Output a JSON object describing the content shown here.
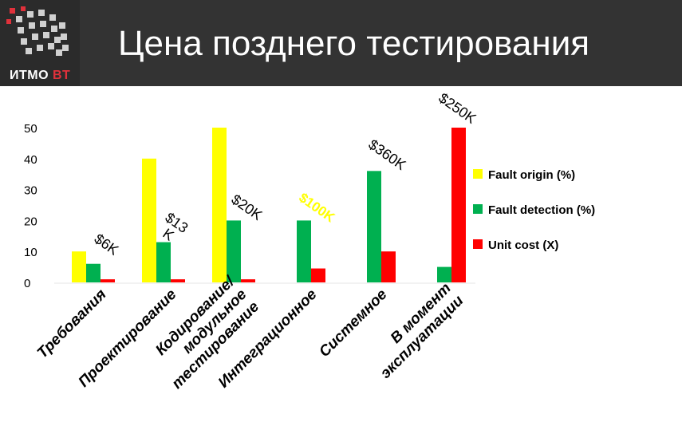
{
  "header": {
    "logo_text": "ИТМО",
    "logo_accent": "BT",
    "title": "Цена позднего тестирования"
  },
  "chart_data": {
    "type": "bar",
    "categories": [
      "Требования",
      "Проектирование",
      "Кодирование/ модульное тестирование",
      "Интеграционное",
      "Системное",
      "В момент эксплуатации"
    ],
    "category_lines": [
      [
        "Требования"
      ],
      [
        "Проектирование"
      ],
      [
        "Кодирование/",
        "модульное",
        "тестирование"
      ],
      [
        "Интеграционное"
      ],
      [
        "Системное"
      ],
      [
        "В момент",
        "эксплуатации"
      ]
    ],
    "series": [
      {
        "name": "Fault origin (%)",
        "color": "#ffff00",
        "values": [
          10,
          40,
          50,
          0,
          0,
          0
        ]
      },
      {
        "name": "Fault detection (%)",
        "color": "#00b050",
        "values": [
          6,
          13,
          20,
          20,
          36,
          5
        ]
      },
      {
        "name": "Unit cost (X)",
        "color": "#ff0000",
        "values": [
          1,
          1,
          1,
          4.5,
          10,
          50
        ]
      }
    ],
    "annotations": [
      {
        "text": "$6K",
        "category": 0,
        "y": 11
      },
      {
        "text": "$13\nK",
        "category": 1,
        "y": 18
      },
      {
        "text": "$20K",
        "category": 2,
        "y": 23
      },
      {
        "text": "$100K",
        "category": 3,
        "y": 23,
        "color": "#ffff00",
        "style": "bold-serif"
      },
      {
        "text": "$360K",
        "category": 4,
        "y": 40
      },
      {
        "text": "$250K",
        "category": 5,
        "y": 55
      }
    ],
    "yticks": [
      0,
      10,
      20,
      30,
      40,
      50
    ],
    "ylim": [
      0,
      50
    ],
    "grid": false,
    "legend_position": "right"
  }
}
